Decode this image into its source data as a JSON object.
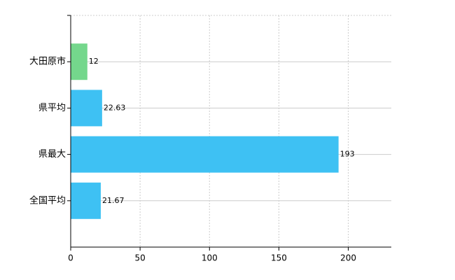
{
  "chart_data": {
    "type": "bar",
    "orientation": "horizontal",
    "categories": [
      "大田原市",
      "県平均",
      "県最大",
      "全国平均"
    ],
    "values": [
      12,
      22.63,
      193,
      21.67
    ],
    "colors": [
      "#74d78c",
      "#3ec1f3",
      "#3ec1f3",
      "#3ec1f3"
    ],
    "xlim": [
      0,
      231
    ],
    "xticks": [
      0,
      50,
      100,
      150,
      200
    ],
    "grid": true
  }
}
